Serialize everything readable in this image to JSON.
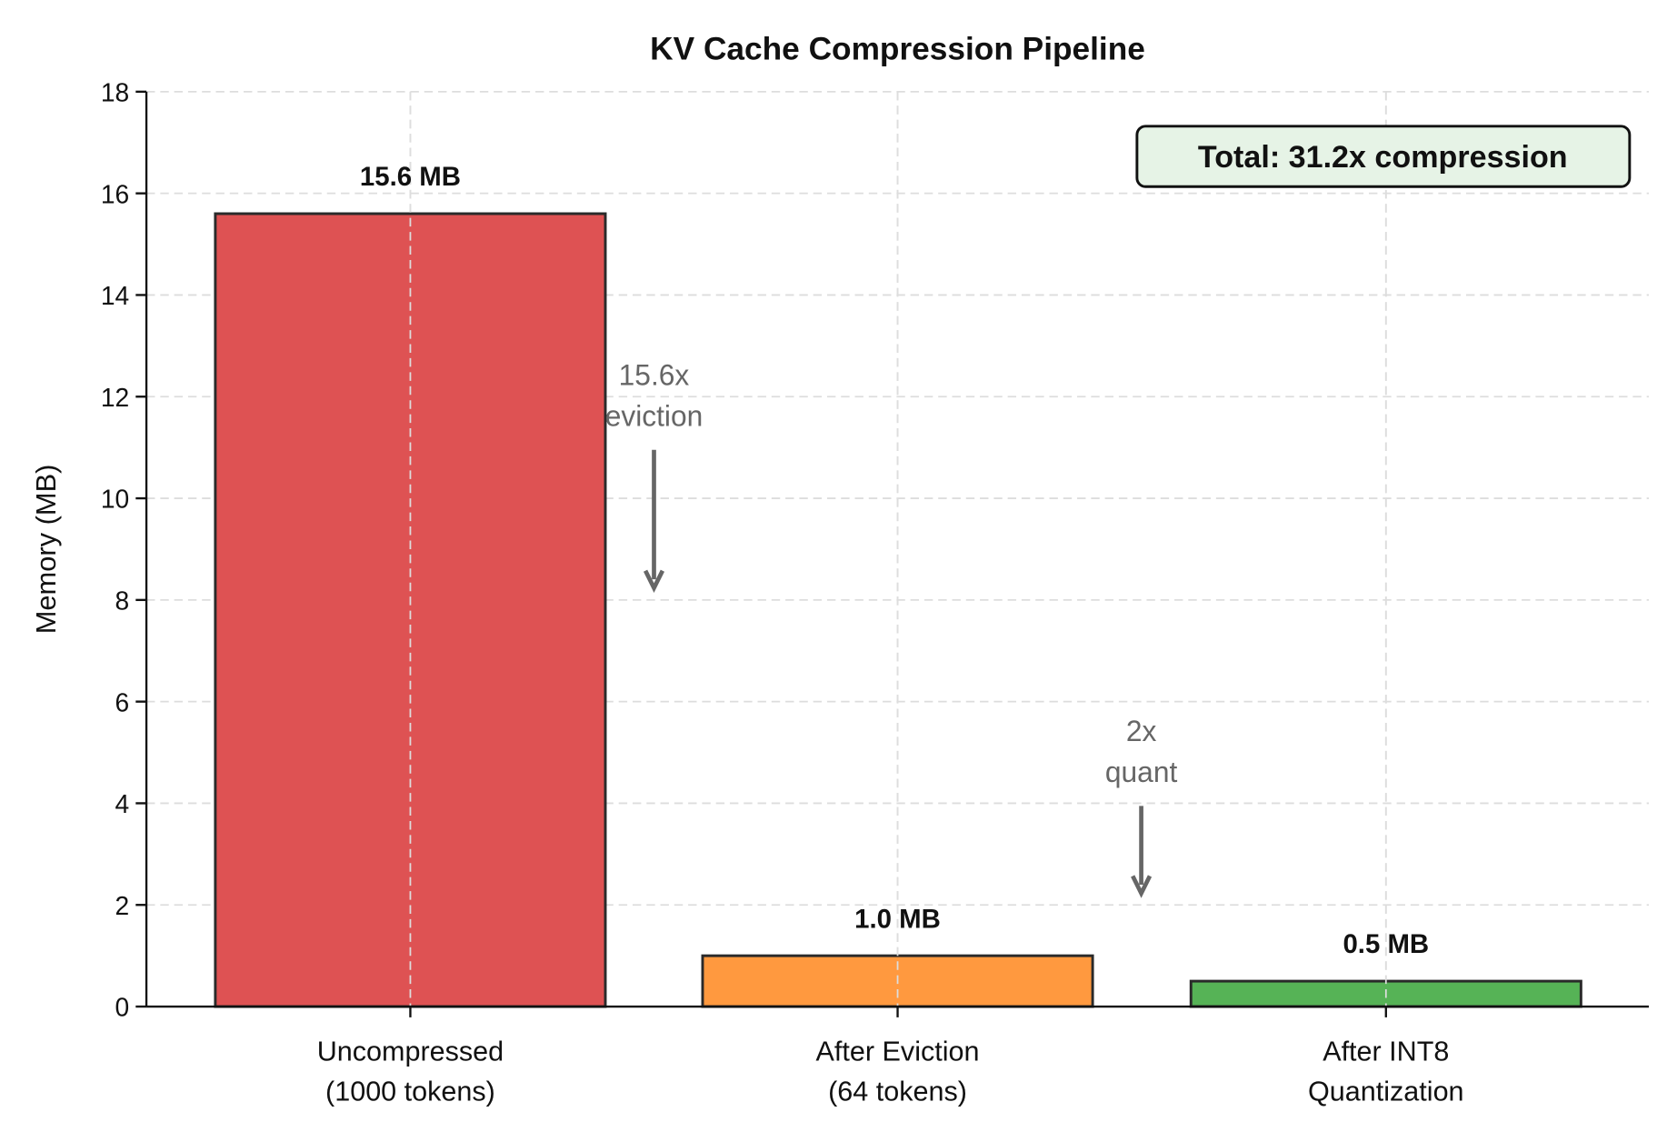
{
  "chart_data": {
    "type": "bar",
    "title": "KV Cache Compression Pipeline",
    "xlabel": "",
    "ylabel": "Memory (MB)",
    "ylim": [
      0,
      18
    ],
    "yticks": [
      0,
      2,
      4,
      6,
      8,
      10,
      12,
      14,
      16,
      18
    ],
    "grid": true,
    "categories": [
      [
        "Uncompressed",
        "(1000 tokens)"
      ],
      [
        "After Eviction",
        "(64 tokens)"
      ],
      [
        "After INT8",
        "Quantization"
      ]
    ],
    "values": [
      15.6,
      1.0,
      0.5
    ],
    "data_labels": [
      "15.6 MB",
      "1.0 MB",
      "0.5 MB"
    ],
    "colors": [
      "#de5253",
      "#ff993f",
      "#56b356"
    ],
    "annotations": [
      {
        "lines": [
          "15.6x",
          "eviction"
        ],
        "between": [
          0,
          1
        ],
        "arrow": "down"
      },
      {
        "lines": [
          "2x",
          "quant"
        ],
        "between": [
          1,
          2
        ],
        "arrow": "down"
      }
    ],
    "summary_box": {
      "text": "Total: 31.2x compression",
      "placement": "top-right",
      "fill": "#e6f3e6"
    }
  }
}
